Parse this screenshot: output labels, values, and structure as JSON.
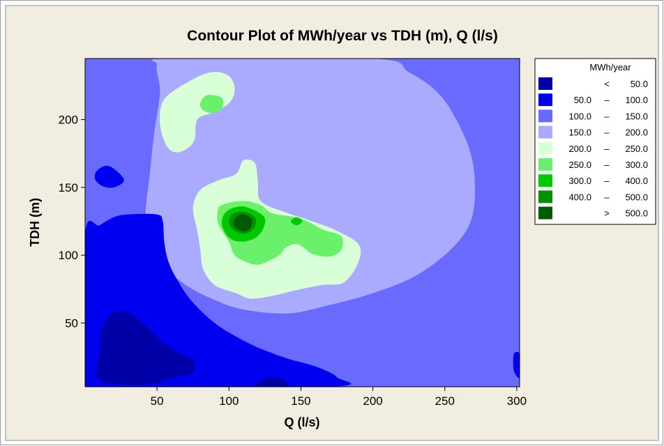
{
  "chart_data": {
    "type": "contour",
    "title": "Contour Plot of MWh/year vs TDH (m), Q (l/s)",
    "xlabel": "Q (l/s)",
    "ylabel": "TDH (m)",
    "xlim": [
      0,
      302
    ],
    "ylim": [
      3,
      245
    ],
    "xticks": [
      50,
      100,
      150,
      200,
      250,
      300
    ],
    "yticks": [
      50,
      100,
      150,
      200
    ],
    "legend": {
      "title": "MWh/year",
      "placement": "right",
      "entries": [
        {
          "low": "",
          "sep": "<",
          "high": "50.0",
          "color": "#0000A8"
        },
        {
          "low": "50.0",
          "sep": "–",
          "high": "100.0",
          "color": "#0000F0"
        },
        {
          "low": "100.0",
          "sep": "–",
          "high": "150.0",
          "color": "#6A6AFF"
        },
        {
          "low": "150.0",
          "sep": "–",
          "high": "200.0",
          "color": "#AAAAFF"
        },
        {
          "low": "200.0",
          "sep": "–",
          "high": "250.0",
          "color": "#D8FFD8"
        },
        {
          "low": "250.0",
          "sep": "–",
          "high": "300.0",
          "color": "#6AF06A"
        },
        {
          "low": "300.0",
          "sep": "–",
          "high": "400.0",
          "color": "#00C800"
        },
        {
          "low": "400.0",
          "sep": "–",
          "high": "500.0",
          "color": "#009000"
        },
        {
          "low": "",
          "sep": ">",
          "high": "500.0",
          "color": "#005A00"
        }
      ]
    },
    "regions": [
      {
        "band": 2,
        "points": [
          [
            0,
            3
          ],
          [
            302,
            3
          ],
          [
            302,
            245
          ],
          [
            0,
            245
          ]
        ]
      },
      {
        "band": 3,
        "points": [
          [
            60,
            245
          ],
          [
            200,
            245
          ],
          [
            225,
            235
          ],
          [
            245,
            220
          ],
          [
            258,
            200
          ],
          [
            268,
            175
          ],
          [
            271,
            150
          ],
          [
            268,
            125
          ],
          [
            255,
            105
          ],
          [
            230,
            85
          ],
          [
            200,
            72
          ],
          [
            165,
            62
          ],
          [
            140,
            57
          ],
          [
            110,
            60
          ],
          [
            90,
            67
          ],
          [
            70,
            78
          ],
          [
            55,
            92
          ],
          [
            45,
            110
          ],
          [
            42,
            130
          ],
          [
            45,
            160
          ],
          [
            48,
            190
          ],
          [
            52,
            220
          ],
          [
            50,
            240
          ]
        ]
      },
      {
        "band": 4,
        "points": [
          [
            55,
            215
          ],
          [
            72,
            228
          ],
          [
            88,
            235
          ],
          [
            100,
            232
          ],
          [
            104,
            222
          ],
          [
            100,
            212
          ],
          [
            88,
            205
          ],
          [
            78,
            200
          ],
          [
            76,
            185
          ],
          [
            70,
            178
          ],
          [
            62,
            176
          ],
          [
            56,
            182
          ],
          [
            52,
            198
          ]
        ]
      },
      {
        "band": 4,
        "points": [
          [
            105,
            160
          ],
          [
            110,
            170
          ],
          [
            118,
            168
          ],
          [
            120,
            155
          ],
          [
            122,
            140
          ],
          [
            138,
            132
          ],
          [
            158,
            125
          ],
          [
            175,
            118
          ],
          [
            190,
            108
          ],
          [
            190,
            95
          ],
          [
            180,
            80
          ],
          [
            165,
            78
          ],
          [
            150,
            75
          ],
          [
            130,
            70
          ],
          [
            115,
            68
          ],
          [
            105,
            72
          ],
          [
            90,
            78
          ],
          [
            82,
            90
          ],
          [
            80,
            105
          ],
          [
            78,
            118
          ],
          [
            75,
            135
          ],
          [
            80,
            148
          ],
          [
            92,
            155
          ]
        ]
      },
      {
        "band": 3,
        "points": [
          [
            57,
            125
          ],
          [
            68,
            128
          ],
          [
            70,
            120
          ],
          [
            66,
            112
          ],
          [
            59,
            114
          ]
        ]
      },
      {
        "band": 5,
        "points": [
          [
            92,
            131
          ],
          [
            95,
            137
          ],
          [
            110,
            140
          ],
          [
            122,
            137
          ],
          [
            130,
            131
          ],
          [
            150,
            127
          ],
          [
            165,
            119
          ],
          [
            178,
            114
          ],
          [
            178,
            104
          ],
          [
            170,
            99
          ],
          [
            158,
            101
          ],
          [
            148,
            108
          ],
          [
            140,
            106
          ],
          [
            135,
            100
          ],
          [
            128,
            96
          ],
          [
            120,
            93
          ],
          [
            112,
            95
          ],
          [
            104,
            100
          ],
          [
            100,
            110
          ],
          [
            93,
            122
          ]
        ]
      },
      {
        "band": 5,
        "points": [
          [
            80,
            212
          ],
          [
            85,
            218
          ],
          [
            95,
            216
          ],
          [
            95,
            208
          ],
          [
            88,
            205
          ],
          [
            82,
            207
          ]
        ]
      },
      {
        "band": 6,
        "points": [
          [
            95,
            123
          ],
          [
            98,
            132
          ],
          [
            108,
            136
          ],
          [
            118,
            133
          ],
          [
            125,
            127
          ],
          [
            123,
            118
          ],
          [
            117,
            112
          ],
          [
            108,
            110
          ],
          [
            100,
            113
          ]
        ]
      },
      {
        "band": 7,
        "points": [
          [
            100,
            124
          ],
          [
            102,
            130
          ],
          [
            110,
            132
          ],
          [
            118,
            128
          ],
          [
            118,
            121
          ],
          [
            112,
            116
          ],
          [
            104,
            118
          ]
        ]
      },
      {
        "band": 8,
        "points": [
          [
            103,
            123
          ],
          [
            106,
            129
          ],
          [
            111,
            130
          ],
          [
            116,
            126
          ],
          [
            114,
            119
          ],
          [
            108,
            118
          ]
        ]
      },
      {
        "band": 6,
        "points": [
          [
            143,
            125
          ],
          [
            147,
            128
          ],
          [
            151,
            125
          ],
          [
            147,
            122
          ]
        ]
      },
      {
        "band": 1,
        "points": [
          [
            0,
            3
          ],
          [
            170,
            3
          ],
          [
            175,
            10
          ],
          [
            160,
            18
          ],
          [
            140,
            24
          ],
          [
            120,
            32
          ],
          [
            105,
            40
          ],
          [
            90,
            50
          ],
          [
            75,
            65
          ],
          [
            65,
            80
          ],
          [
            58,
            95
          ],
          [
            55,
            110
          ],
          [
            54,
            125
          ],
          [
            50,
            130
          ],
          [
            30,
            130
          ],
          [
            20,
            128
          ],
          [
            10,
            122
          ],
          [
            0,
            115
          ]
        ]
      },
      {
        "band": 1,
        "points": [
          [
            8,
            162
          ],
          [
            15,
            166
          ],
          [
            22,
            162
          ],
          [
            27,
            155
          ],
          [
            20,
            150
          ],
          [
            12,
            151
          ],
          [
            7,
            156
          ]
        ]
      },
      {
        "band": 1,
        "points": [
          [
            298,
            27
          ],
          [
            302,
            27
          ],
          [
            302,
            10
          ],
          [
            298,
            15
          ]
        ]
      },
      {
        "band": 0,
        "points": [
          [
            8,
            15
          ],
          [
            10,
            30
          ],
          [
            12,
            47
          ],
          [
            20,
            58
          ],
          [
            30,
            58
          ],
          [
            40,
            50
          ],
          [
            55,
            35
          ],
          [
            65,
            28
          ],
          [
            75,
            23
          ],
          [
            75,
            13
          ],
          [
            62,
            10
          ],
          [
            45,
            5
          ],
          [
            20,
            5
          ],
          [
            10,
            8
          ]
        ]
      },
      {
        "band": 0,
        "points": [
          [
            120,
            3
          ],
          [
            140,
            3
          ],
          [
            137,
            9
          ],
          [
            128,
            10
          ],
          [
            121,
            7
          ]
        ]
      }
    ]
  }
}
